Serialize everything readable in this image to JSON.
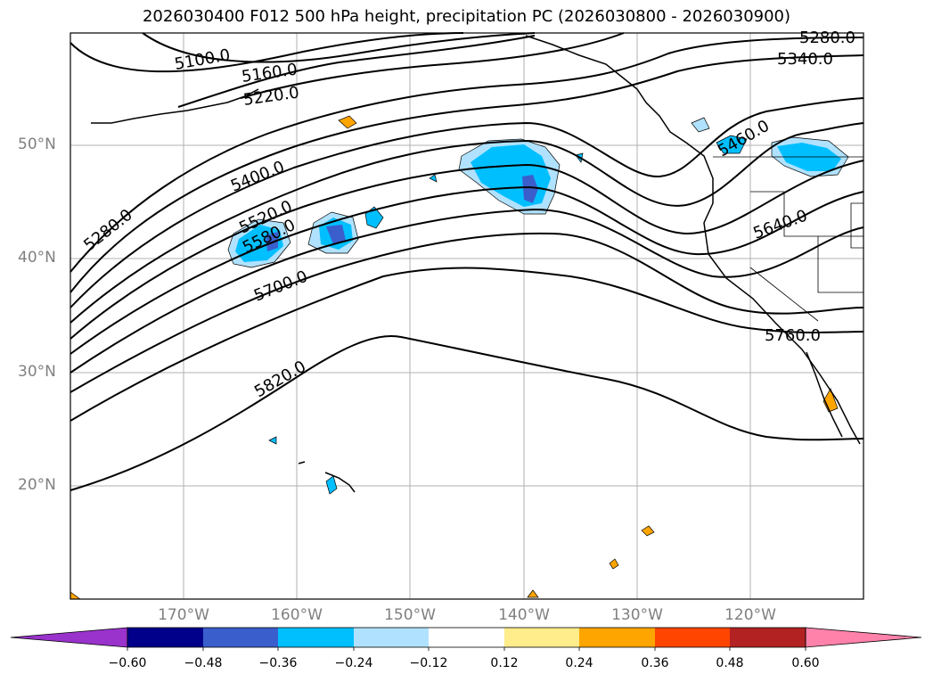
{
  "title": "2026030400 F012 500 hPa height, precipitation PC (2026030800 - 2026030900)",
  "map": {
    "lat_labels": [
      "50°N",
      "40°N",
      "30°N",
      "20°N"
    ],
    "lon_labels": [
      "170°W",
      "160°W",
      "150°W",
      "140°W",
      "130°W",
      "120°W"
    ],
    "contour_labels": [
      "5100.0",
      "5160.0",
      "5220.0",
      "5280.0",
      "5340.0",
      "5280.0",
      "5400.0",
      "5520.0",
      "5580.0",
      "5700.0",
      "5820.0",
      "5640.0",
      "5760.0",
      "5460.0"
    ]
  },
  "colorbar": {
    "ticks": [
      "−0.60",
      "−0.48",
      "−0.36",
      "−0.24",
      "−0.12",
      "0.12",
      "0.24",
      "0.36",
      "0.48",
      "0.60"
    ],
    "colors": [
      "#9933cc",
      "#00008b",
      "#3a5fcd",
      "#00bfff",
      "#b0e2ff",
      "#ffffff",
      "#ffec8b",
      "#ffa500",
      "#ff4500",
      "#b22222",
      "#ff82ab"
    ],
    "boundaries": [
      -0.6,
      -0.48,
      -0.36,
      -0.24,
      -0.12,
      0.12,
      0.24,
      0.36,
      0.48,
      0.6
    ]
  }
}
